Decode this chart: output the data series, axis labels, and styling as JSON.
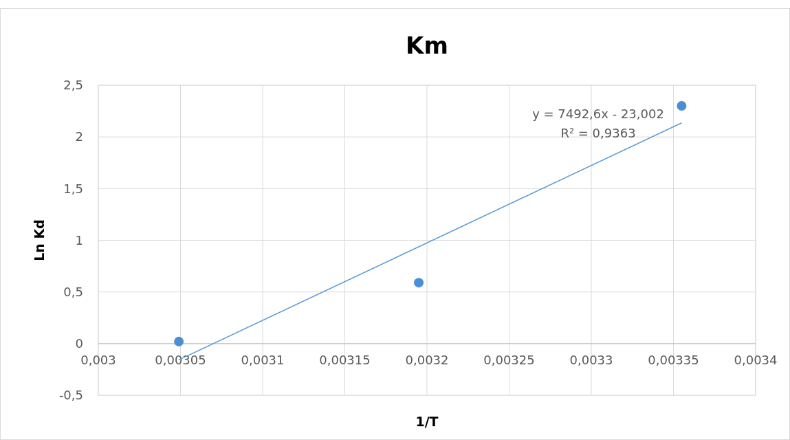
{
  "chart_data": {
    "type": "scatter",
    "title": "Km",
    "xlabel": "1/T",
    "ylabel": "Ln Kd",
    "xlim": [
      0.003,
      0.0034
    ],
    "xticks": [
      {
        "value": 0.003,
        "label": "0,003"
      },
      {
        "value": 0.00305,
        "label": "0,00305"
      },
      {
        "value": 0.0031,
        "label": "0,0031"
      },
      {
        "value": 0.00315,
        "label": "0,00315"
      },
      {
        "value": 0.0032,
        "label": "0,0032"
      },
      {
        "value": 0.00325,
        "label": "0,00325"
      },
      {
        "value": 0.0033,
        "label": "0,0033"
      },
      {
        "value": 0.00335,
        "label": "0,00335"
      },
      {
        "value": 0.0034,
        "label": "0,0034"
      }
    ],
    "ylim": [
      -0.5,
      2.5
    ],
    "yticks": [
      {
        "value": -0.5,
        "label": "-0,5"
      },
      0,
      {
        "value": 0.5,
        "label": "0,5"
      },
      1,
      {
        "value": 1.5,
        "label": "1,5"
      },
      2,
      {
        "value": 2.5,
        "label": "2,5"
      }
    ],
    "grid": true,
    "series": [
      {
        "marker": "circle",
        "color": "#4a8fd6",
        "x": [
          0.003049,
          0.003195,
          0.003355
        ],
        "values": [
          0.02,
          0.59,
          2.3
        ]
      },
      {
        "type": "line",
        "color": "#5b9bd5",
        "x": [
          0.003049,
          0.003355
        ],
        "values": [
          -0.157,
          2.136
        ]
      }
    ],
    "annotations": [
      "y = 7492,6x - 23,002",
      "R² = 0,9363"
    ]
  }
}
